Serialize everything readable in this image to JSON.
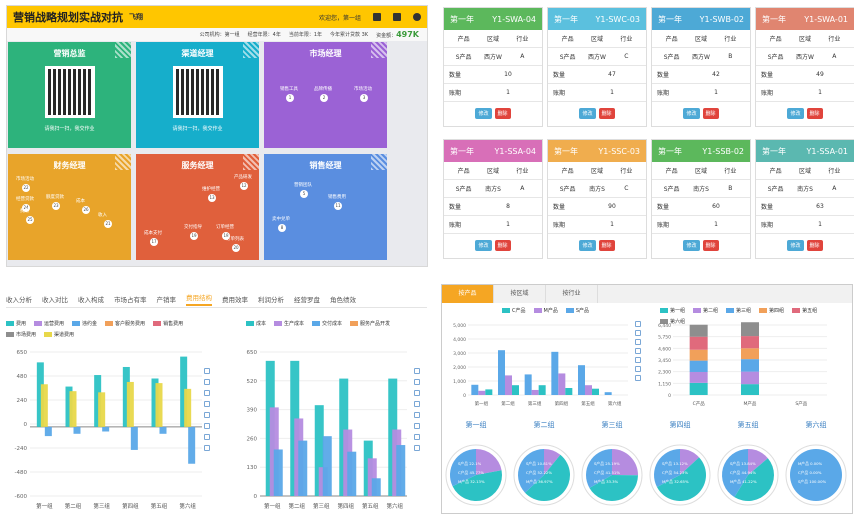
{
  "dashboard": {
    "title": "营销战略规划实战对抗",
    "user": "飞翔",
    "welcome": "欢迎您，第一组",
    "info": [
      "公司机构：第一组",
      "经营年限：4年",
      "当前年限：1年",
      "今年累计贷款 3K",
      "资金额："
    ],
    "funds": "497K",
    "tiles": [
      {
        "title": "营销总监",
        "color": "#2db37c",
        "qr": true,
        "caption": "请我扫一扫，我交作业"
      },
      {
        "title": "渠道经理",
        "color": "#16aecb",
        "qr": true,
        "caption": "请我扫一扫，我交作业"
      },
      {
        "title": "市场经理",
        "color": "#9b62d5",
        "qr": false
      },
      {
        "title": "财务经理",
        "color": "#e8a42a",
        "qr": false
      },
      {
        "title": "服务经理",
        "color": "#e0603c",
        "qr": false
      },
      {
        "title": "销售经理",
        "color": "#5a8ee0",
        "qr": false
      }
    ]
  },
  "flow": {
    "market": [
      {
        "n": "1",
        "t": "销售工具"
      },
      {
        "n": "2",
        "t": "品牌传播"
      },
      {
        "n": "3",
        "t": "市场活动"
      }
    ],
    "finance": [
      {
        "n": "22",
        "t": "市场活动"
      },
      {
        "n": "23",
        "t": "额度贷款"
      },
      {
        "n": "24",
        "t": "经营贷款"
      },
      {
        "n": "25",
        "t": "费用"
      },
      {
        "n": "26",
        "t": "成本"
      },
      {
        "n": "21",
        "t": "收入"
      }
    ],
    "service": [
      {
        "n": "12",
        "t": "产品研发"
      },
      {
        "n": "13",
        "t": "维护经营"
      },
      {
        "n": "18",
        "t": "订单经营"
      },
      {
        "n": "19",
        "t": "交付指导"
      },
      {
        "n": "17",
        "t": "成本支付"
      },
      {
        "n": "20",
        "t": "订单列表"
      }
    ],
    "sales": [
      {
        "n": "5",
        "t": "营销团队"
      },
      {
        "n": "11",
        "t": "销售费用"
      },
      {
        "n": "8",
        "t": "卖中兑单"
      }
    ]
  },
  "cards": [
    {
      "year": "第一年",
      "code": "Y1-SWA-04",
      "color": "#5cb85c",
      "region": "西方W",
      "market": "A",
      "qty": "10",
      "period": "1"
    },
    {
      "year": "第一年",
      "code": "Y1-SWC-03",
      "color": "#5bc0de",
      "region": "西方W",
      "market": "C",
      "qty": "47",
      "period": "1"
    },
    {
      "year": "第一年",
      "code": "Y1-SWB-02",
      "color": "#4da9d6",
      "region": "西方W",
      "market": "B",
      "qty": "42",
      "period": "1"
    },
    {
      "year": "第一年",
      "code": "Y1-SWA-01",
      "color": "#e08570",
      "region": "西方W",
      "market": "A",
      "qty": "49",
      "period": "1"
    },
    {
      "year": "第一年",
      "code": "Y1-SSA-04",
      "color": "#d86fb8",
      "region": "南方S",
      "market": "A",
      "qty": "8",
      "period": "1"
    },
    {
      "year": "第一年",
      "code": "Y1-SSC-03",
      "color": "#f0ad4e",
      "region": "南方S",
      "market": "C",
      "qty": "90",
      "period": "1"
    },
    {
      "year": "第一年",
      "code": "Y1-SSB-02",
      "color": "#5cb85c",
      "region": "南方S",
      "market": "B",
      "qty": "60",
      "period": "1"
    },
    {
      "year": "第一年",
      "code": "Y1-SSA-01",
      "color": "#5bb8b0",
      "region": "南方S",
      "market": "A",
      "qty": "63",
      "period": "1"
    }
  ],
  "card_labels": {
    "product": "产品",
    "region": "区域",
    "market": "行业",
    "product_val": "S产品",
    "qty": "数量",
    "period": "账期",
    "edit": "修改",
    "delete": "删除"
  },
  "analysis": {
    "tabs": [
      "收入分析",
      "收入对比",
      "收入构成",
      "市场占有率",
      "产销率",
      "费用结构",
      "费用效率",
      "利润分析",
      "经营罗盘",
      "角色绩效"
    ],
    "active": 5,
    "left_legend": [
      {
        "name": "费用",
        "color": "#2cc2c4"
      },
      {
        "name": "运营费用",
        "color": "#b58ce0"
      },
      {
        "name": "违约金",
        "color": "#5aa8e8"
      },
      {
        "name": "客户服务费用",
        "color": "#f1a05a"
      },
      {
        "name": "销售费用",
        "color": "#e06a7c"
      },
      {
        "name": "市场费用",
        "color": "#8e8e8e"
      },
      {
        "name": "渠道费用",
        "color": "#e8d84a"
      }
    ],
    "right_legend": [
      {
        "name": "成本",
        "color": "#2cc2c4"
      },
      {
        "name": "生产成本",
        "color": "#b58ce0"
      },
      {
        "name": "交付成本",
        "color": "#5aa8e8"
      },
      {
        "name": "服务产品开发",
        "color": "#f1a05a"
      }
    ]
  },
  "chart_left": {
    "type": "bar",
    "categories": [
      "第一组",
      "第二组",
      "第三组",
      "第四组",
      "第五组",
      "第六组"
    ],
    "ylim": [
      -600,
      650
    ],
    "yticks": [
      "650",
      "480",
      "240",
      "0",
      "-240",
      "-480",
      "-600"
    ],
    "series": [
      {
        "name": "费用",
        "color": "#2cc2c4",
        "values": [
          560,
          350,
          450,
          520,
          420,
          610
        ]
      },
      {
        "name": "违约金",
        "color": "#5aa8e8",
        "values": [
          -80,
          -60,
          -40,
          -200,
          -60,
          -320
        ]
      },
      {
        "name": "渠道费用",
        "color": "#e8d84a",
        "values": [
          370,
          310,
          300,
          390,
          380,
          330
        ]
      }
    ]
  },
  "chart_right": {
    "type": "bar",
    "categories": [
      "第一组",
      "第二组",
      "第三组",
      "第四组",
      "第五组",
      "第六组"
    ],
    "ylim": [
      0,
      650
    ],
    "yticks": [
      "650",
      "520",
      "390",
      "260",
      "130",
      "0"
    ],
    "series": [
      {
        "name": "成本",
        "color": "#2cc2c4",
        "values": [
          610,
          610,
          410,
          530,
          250,
          530
        ]
      },
      {
        "name": "生产成本",
        "color": "#b58ce0",
        "values": [
          400,
          350,
          130,
          300,
          170,
          300
        ]
      },
      {
        "name": "交付成本",
        "color": "#5aa8e8",
        "values": [
          210,
          250,
          270,
          200,
          80,
          230
        ]
      }
    ]
  },
  "region_panel": {
    "tabs": [
      "按产品",
      "按区域",
      "按行业"
    ],
    "active": 0,
    "legend": [
      {
        "name": "C产品",
        "color": "#2cc2c4"
      },
      {
        "name": "M产品",
        "color": "#b58ce0"
      },
      {
        "name": "S产品",
        "color": "#5aa8e8"
      }
    ],
    "legend2": [
      {
        "name": "第一组",
        "color": "#2cc2c4"
      },
      {
        "name": "第二组",
        "color": "#b58ce0"
      },
      {
        "name": "第三组",
        "color": "#5aa8e8"
      },
      {
        "name": "第四组",
        "color": "#f1a05a"
      },
      {
        "name": "第五组",
        "color": "#e06a7c"
      },
      {
        "name": "第六组",
        "color": "#8e8e8e"
      }
    ],
    "bar_cats": [
      "第一组",
      "第二组",
      "第三组",
      "第四组",
      "第五组",
      "第六组"
    ],
    "bar_vals": [
      {
        "c": 730,
        "m": 300,
        "s": 400
      },
      {
        "c": 3200,
        "m": 1400,
        "s": 700
      },
      {
        "c": 1470,
        "m": 360,
        "s": 700
      },
      {
        "c": 3084,
        "m": 1540,
        "s": 500
      },
      {
        "c": 2130,
        "m": 700,
        "s": 450
      },
      {
        "c": 200,
        "m": 0,
        "s": 0
      }
    ],
    "yticks": [
      "5,000",
      "4,000",
      "3,000",
      "2,000",
      "1,000",
      "0"
    ],
    "stack_cats": [
      "C产品",
      "M产品",
      "S产品"
    ],
    "stack_vals": [
      [
        1117,
        1000,
        1047,
        1000,
        1200,
        1100
      ],
      [
        1000,
        1150,
        1150,
        1000,
        1120,
        1274
      ],
      [
        0,
        0,
        0,
        0,
        0,
        0
      ]
    ],
    "yticks2": [
      "6,440",
      "5,750",
      "4,600",
      "3,450",
      "2,300",
      "1,150",
      "0"
    ],
    "pies": [
      {
        "title": "第一组",
        "slices": [
          {
            "v": 22.1,
            "c": "#b58ce0",
            "l": "S产品 22.1%"
          },
          {
            "v": 45.77,
            "c": "#2cc2c4",
            "l": "C产品 45.77%"
          },
          {
            "v": 32.13,
            "c": "#5aa8e8",
            "l": "M产品 32.13%"
          }
        ]
      },
      {
        "title": "第二组",
        "slices": [
          {
            "v": 10.81,
            "c": "#b58ce0",
            "l": "S产品 10.81%"
          },
          {
            "v": 52.22,
            "c": "#2cc2c4",
            "l": "C产品 52.22%"
          },
          {
            "v": 36.97,
            "c": "#5aa8e8",
            "l": "M产品 36.97%"
          }
        ]
      },
      {
        "title": "第三组",
        "slices": [
          {
            "v": 25.19,
            "c": "#b58ce0",
            "l": "S产品 25.19%"
          },
          {
            "v": 41.51,
            "c": "#2cc2c4",
            "l": "C产品 41.51%"
          },
          {
            "v": 33.3,
            "c": "#5aa8e8",
            "l": "M产品 33.3%"
          }
        ]
      },
      {
        "title": "第四组",
        "slices": [
          {
            "v": 13.12,
            "c": "#b58ce0",
            "l": "S产品 13.12%"
          },
          {
            "v": 54.23,
            "c": "#2cc2c4",
            "l": "C产品 54.23%"
          },
          {
            "v": 32.65,
            "c": "#5aa8e8",
            "l": "M产品 32.65%"
          }
        ]
      },
      {
        "title": "第五组",
        "slices": [
          {
            "v": 13.84,
            "c": "#b58ce0",
            "l": "S产品 13.84%"
          },
          {
            "v": 44.94,
            "c": "#2cc2c4",
            "l": "C产品 44.94%"
          },
          {
            "v": 41.22,
            "c": "#5aa8e8",
            "l": "M产品 41.22%"
          }
        ]
      },
      {
        "title": "第六组",
        "slices": [
          {
            "v": 0,
            "c": "#b58ce0",
            "l": "M产品 0.00%"
          },
          {
            "v": 0,
            "c": "#2cc2c4",
            "l": "C产品 0.00%"
          },
          {
            "v": 100,
            "c": "#5aa8e8",
            "l": "S产品 100.00%"
          }
        ]
      }
    ]
  }
}
